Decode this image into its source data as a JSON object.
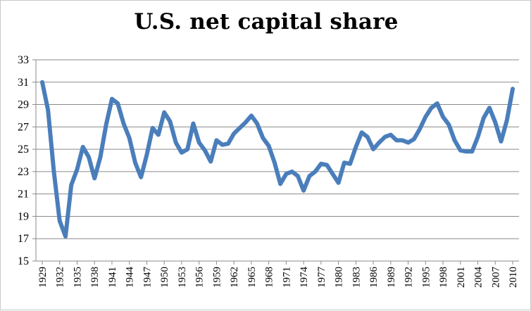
{
  "chart_data": {
    "type": "line",
    "title": "U.S. net capital share",
    "xlabel": "",
    "ylabel": "",
    "ylim": [
      15,
      33
    ],
    "yticks": [
      15,
      17,
      19,
      21,
      23,
      25,
      27,
      29,
      31,
      33
    ],
    "xticks": [
      1929,
      1932,
      1935,
      1938,
      1941,
      1944,
      1947,
      1950,
      1953,
      1956,
      1959,
      1962,
      1965,
      1968,
      1971,
      1974,
      1977,
      1980,
      1983,
      1986,
      1989,
      1992,
      1995,
      1998,
      2001,
      2004,
      2007,
      2010
    ],
    "grid": "horizontal",
    "legend": "none",
    "line_color": "#4a7ebb",
    "x": [
      1929,
      1930,
      1931,
      1932,
      1933,
      1934,
      1935,
      1936,
      1937,
      1938,
      1939,
      1940,
      1941,
      1942,
      1943,
      1944,
      1945,
      1946,
      1947,
      1948,
      1949,
      1950,
      1951,
      1952,
      1953,
      1954,
      1955,
      1956,
      1957,
      1958,
      1959,
      1960,
      1961,
      1962,
      1963,
      1964,
      1965,
      1966,
      1967,
      1968,
      1969,
      1970,
      1971,
      1972,
      1973,
      1974,
      1975,
      1976,
      1977,
      1978,
      1979,
      1980,
      1981,
      1982,
      1983,
      1984,
      1985,
      1986,
      1987,
      1988,
      1989,
      1990,
      1991,
      1992,
      1993,
      1994,
      1995,
      1996,
      1997,
      1998,
      1999,
      2000,
      2001,
      2002,
      2003,
      2004,
      2005,
      2006,
      2007,
      2008,
      2009,
      2010
    ],
    "values": [
      31.0,
      28.5,
      23.0,
      18.6,
      17.2,
      21.8,
      23.2,
      25.2,
      24.3,
      22.4,
      24.3,
      27.2,
      29.5,
      29.1,
      27.3,
      26.0,
      23.8,
      22.5,
      24.5,
      26.9,
      26.3,
      28.3,
      27.5,
      25.6,
      24.7,
      25.0,
      27.3,
      25.6,
      24.9,
      23.9,
      25.8,
      25.4,
      25.5,
      26.4,
      26.9,
      27.4,
      28.0,
      27.3,
      26.0,
      25.3,
      23.8,
      21.9,
      22.8,
      23.0,
      22.6,
      21.3,
      22.6,
      23.0,
      23.7,
      23.6,
      22.8,
      22.0,
      23.8,
      23.7,
      25.2,
      26.5,
      26.1,
      25.0,
      25.6,
      26.1,
      26.3,
      25.8,
      25.8,
      25.6,
      25.9,
      26.8,
      27.9,
      28.7,
      29.1,
      27.9,
      27.2,
      25.8,
      24.9,
      24.8,
      24.8,
      26.1,
      27.8,
      28.7,
      27.4,
      25.7,
      27.6,
      30.4
    ]
  }
}
